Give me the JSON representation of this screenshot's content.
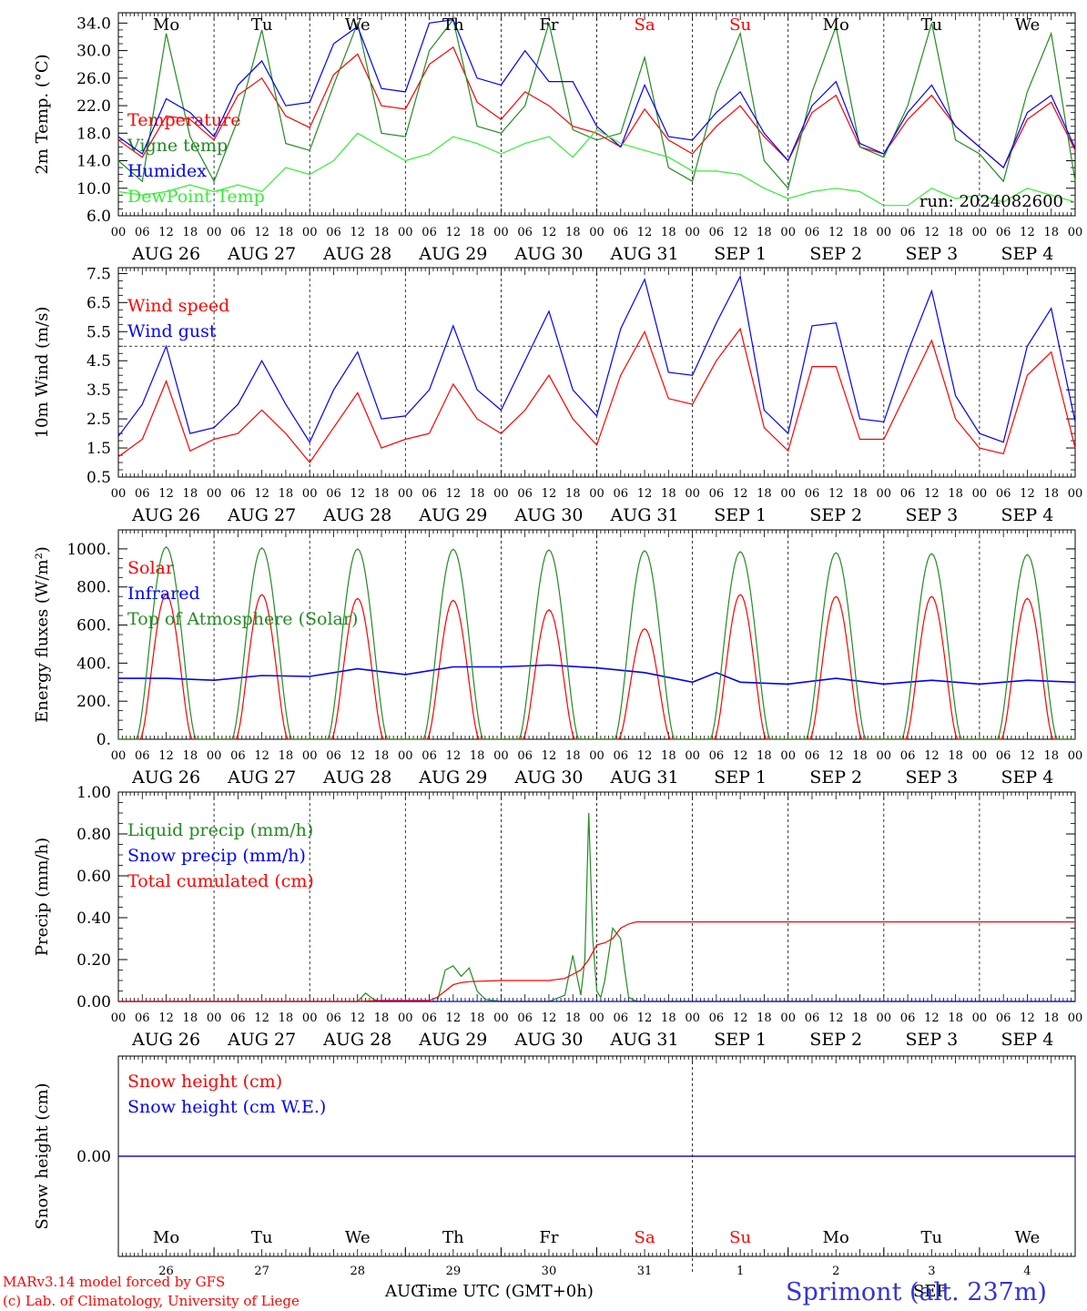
{
  "meteogram": {
    "run_label": "run: 2024082600",
    "footer_model": "MARv3.14 model forced by GFS",
    "footer_lab": "(c) Lab. of Climatology, University of Liege",
    "footer_location": "Sprimont (alt. 237m)",
    "footer_time_label": "Time UTC (GMT+0h)",
    "footer_month_aug": "AUG",
    "footer_month_sep": "SEP",
    "weekend_color": "#ff0000",
    "hour_ticks": [
      "00",
      "06",
      "12",
      "18",
      "00",
      "06",
      "12",
      "18",
      "00",
      "06",
      "12",
      "18",
      "00",
      "06",
      "12",
      "18",
      "00",
      "06",
      "12",
      "18",
      "00",
      "06",
      "12",
      "18",
      "00",
      "06",
      "12",
      "18",
      "00",
      "06",
      "12",
      "18",
      "00",
      "06",
      "12",
      "18",
      "00",
      "06",
      "12",
      "18",
      "00"
    ],
    "date_labels": [
      "AUG 26",
      "AUG 27",
      "AUG 28",
      "AUG 29",
      "AUG 30",
      "AUG 31",
      "SEP  1",
      "SEP  2",
      "SEP  3",
      "SEP  4"
    ],
    "weekdays": [
      "Mo",
      "Tu",
      "We",
      "Th",
      "Fr",
      "Sa",
      "Su",
      "Mo",
      "Tu",
      "We"
    ],
    "weekday_weekend": [
      false,
      false,
      false,
      false,
      false,
      true,
      true,
      false,
      false,
      false
    ],
    "day_numbers": [
      "26",
      "27",
      "28",
      "29",
      "30",
      "31",
      "1",
      "2",
      "3",
      "4"
    ]
  },
  "chart_data": [
    {
      "type": "line",
      "id": "temperature",
      "ylabel": "2m Temp. (°C)",
      "ylim": [
        6.0,
        35.5
      ],
      "yticks": [
        "6.0",
        "10.0",
        "14.0",
        "18.0",
        "22.0",
        "26.0",
        "30.0",
        "34.0"
      ],
      "ytick_values": [
        6,
        10,
        14,
        18,
        22,
        26,
        30,
        34
      ],
      "x_unit": "hours since 2024-08-26 00 UTC",
      "series": [
        {
          "name": "Temperature",
          "color": "#ff0000",
          "x": [
            0,
            6,
            12,
            18,
            24,
            30,
            36,
            42,
            48,
            54,
            60,
            66,
            72,
            78,
            84,
            90,
            96,
            102,
            108,
            114,
            120,
            126,
            132,
            138,
            144,
            150,
            156,
            162,
            168,
            174,
            180,
            186,
            192,
            198,
            204,
            210,
            216,
            222,
            228,
            234,
            240
          ],
          "values": [
            17.0,
            14.5,
            20.5,
            20.0,
            17.0,
            23.5,
            26.0,
            20.5,
            18.8,
            26.5,
            29.5,
            22.0,
            21.5,
            28.0,
            30.5,
            22.5,
            20.0,
            24.0,
            22.0,
            19.0,
            18.0,
            16.0,
            21.5,
            17.0,
            15.0,
            19.0,
            22.0,
            17.5,
            14.0,
            21.0,
            23.5,
            16.0,
            15.0,
            20.0,
            23.5,
            19.0,
            16.0,
            13.0,
            20.0,
            22.5,
            15.5
          ]
        },
        {
          "name": "Vigne temp",
          "color": "#228b22",
          "x": [
            0,
            6,
            12,
            18,
            24,
            30,
            36,
            42,
            48,
            54,
            60,
            66,
            72,
            78,
            84,
            90,
            96,
            102,
            108,
            114,
            120,
            126,
            132,
            138,
            144,
            150,
            156,
            162,
            168,
            174,
            180,
            186,
            192,
            198,
            204,
            210,
            216,
            222,
            228,
            234,
            240
          ],
          "values": [
            14.0,
            11.0,
            32.5,
            17.5,
            11.0,
            20.0,
            33.0,
            16.5,
            15.5,
            25.0,
            34.0,
            18.0,
            17.5,
            30.0,
            34.5,
            19.0,
            18.0,
            22.0,
            34.0,
            18.5,
            17.0,
            18.0,
            29.0,
            13.0,
            11.0,
            24.0,
            32.5,
            14.0,
            10.0,
            24.0,
            33.5,
            16.0,
            14.5,
            22.0,
            34.0,
            17.0,
            15.0,
            11.0,
            24.0,
            32.5,
            11.0
          ]
        },
        {
          "name": "Humidex",
          "color": "#0000ff",
          "x": [
            0,
            6,
            12,
            18,
            24,
            30,
            36,
            42,
            48,
            54,
            60,
            66,
            72,
            78,
            84,
            90,
            96,
            102,
            108,
            114,
            120,
            126,
            132,
            138,
            144,
            150,
            156,
            162,
            168,
            174,
            180,
            186,
            192,
            198,
            204,
            210,
            216,
            222,
            228,
            234,
            240
          ],
          "values": [
            17.5,
            15.0,
            23.0,
            21.0,
            17.5,
            25.0,
            28.5,
            22.0,
            22.5,
            31.0,
            33.5,
            24.5,
            24.0,
            34.0,
            34.5,
            26.0,
            25.0,
            30.0,
            25.5,
            25.5,
            19.0,
            16.0,
            25.0,
            17.5,
            17.0,
            21.0,
            24.0,
            18.0,
            14.0,
            22.0,
            25.5,
            16.5,
            15.0,
            21.0,
            25.0,
            19.0,
            16.0,
            13.0,
            21.0,
            23.5,
            15.8
          ]
        },
        {
          "name": "DewPoint Temp",
          "color": "#33ee33",
          "x": [
            0,
            6,
            12,
            18,
            24,
            30,
            36,
            42,
            48,
            54,
            60,
            66,
            72,
            78,
            84,
            90,
            96,
            102,
            108,
            114,
            120,
            126,
            132,
            138,
            144,
            150,
            156,
            162,
            168,
            174,
            180,
            186,
            192,
            198,
            204,
            210,
            216,
            222,
            228,
            234,
            240
          ],
          "values": [
            9.5,
            9.0,
            9.5,
            10.5,
            9.5,
            10.5,
            9.5,
            13.0,
            12.0,
            14.0,
            18.0,
            16.0,
            14.0,
            15.0,
            17.5,
            16.5,
            15.0,
            16.5,
            17.5,
            14.5,
            18.5,
            16.5,
            15.5,
            14.5,
            12.5,
            12.5,
            12.0,
            10.0,
            8.5,
            9.5,
            10.0,
            9.5,
            7.5,
            7.5,
            10.0,
            8.5,
            9.0,
            8.0,
            10.0,
            9.0,
            8.0
          ]
        }
      ]
    },
    {
      "type": "line",
      "id": "wind",
      "ylabel": "10m Wind (m/s)",
      "ylim": [
        0.5,
        7.7
      ],
      "yticks": [
        "0.5",
        "1.5",
        "2.5",
        "3.5",
        "4.5",
        "5.5",
        "6.5",
        "7.5"
      ],
      "ytick_values": [
        0.5,
        1.5,
        2.5,
        3.5,
        4.5,
        5.5,
        6.5,
        7.5
      ],
      "reference_line": 5.0,
      "series": [
        {
          "name": "Wind speed",
          "color": "#ff0000",
          "x": [
            0,
            6,
            12,
            18,
            24,
            30,
            36,
            42,
            48,
            54,
            60,
            66,
            72,
            78,
            84,
            90,
            96,
            102,
            108,
            114,
            120,
            126,
            132,
            138,
            144,
            150,
            156,
            162,
            168,
            174,
            180,
            186,
            192,
            198,
            204,
            210,
            216,
            222,
            228,
            234,
            240
          ],
          "values": [
            1.2,
            1.8,
            3.8,
            1.4,
            1.8,
            2.0,
            2.8,
            2.0,
            1.0,
            2.2,
            3.4,
            1.5,
            1.8,
            2.0,
            3.7,
            2.5,
            2.0,
            2.8,
            4.0,
            2.5,
            1.6,
            4.0,
            5.5,
            3.2,
            3.0,
            4.5,
            5.6,
            2.2,
            1.4,
            4.3,
            4.3,
            1.8,
            1.8,
            3.5,
            5.2,
            2.5,
            1.5,
            1.3,
            4.0,
            4.8,
            1.5
          ]
        },
        {
          "name": "Wind gust",
          "color": "#0000ff",
          "x": [
            0,
            6,
            12,
            18,
            24,
            30,
            36,
            42,
            48,
            54,
            60,
            66,
            72,
            78,
            84,
            90,
            96,
            102,
            108,
            114,
            120,
            126,
            132,
            138,
            144,
            150,
            156,
            162,
            168,
            174,
            180,
            186,
            192,
            198,
            204,
            210,
            216,
            222,
            228,
            234,
            240
          ],
          "values": [
            1.9,
            3.0,
            5.0,
            2.0,
            2.2,
            3.0,
            4.5,
            3.0,
            1.7,
            3.5,
            4.8,
            2.5,
            2.6,
            3.5,
            5.7,
            3.5,
            2.8,
            4.5,
            6.2,
            3.5,
            2.6,
            5.6,
            7.3,
            4.1,
            4.0,
            5.8,
            7.4,
            2.8,
            2.0,
            5.7,
            5.8,
            2.5,
            2.4,
            4.8,
            6.9,
            3.3,
            2.0,
            1.7,
            5.0,
            6.3,
            2.4
          ]
        }
      ]
    },
    {
      "type": "line",
      "id": "energy",
      "ylabel": "Energy fluxes (W/m²)",
      "ylim": [
        0,
        1100
      ],
      "yticks": [
        "0.",
        "200.",
        "400.",
        "600.",
        "800.",
        "1000."
      ],
      "ytick_values": [
        0,
        200,
        400,
        600,
        800,
        1000
      ],
      "series": [
        {
          "name": "Solar",
          "color": "#ff0000",
          "daily_peak": [
            760,
            760,
            740,
            730,
            680,
            580,
            760,
            750,
            750,
            740
          ]
        },
        {
          "name": "Infrared",
          "color": "#0000ff",
          "x": [
            0,
            12,
            24,
            36,
            48,
            60,
            72,
            84,
            96,
            108,
            120,
            132,
            144,
            150,
            156,
            168,
            180,
            192,
            204,
            216,
            228,
            240
          ],
          "values": [
            320,
            320,
            310,
            335,
            330,
            370,
            340,
            380,
            380,
            390,
            375,
            350,
            300,
            350,
            300,
            290,
            320,
            290,
            310,
            290,
            310,
            300
          ]
        },
        {
          "name": "Top of Atmosphere (Solar)",
          "color": "#228b22",
          "daily_peak": [
            1010,
            1005,
            1000,
            998,
            995,
            990,
            985,
            980,
            975,
            970
          ]
        }
      ]
    },
    {
      "type": "line",
      "id": "precip",
      "ylabel": "Precip (mm/h)",
      "ylim": [
        0,
        1.0
      ],
      "yticks": [
        "0.00",
        "0.20",
        "0.40",
        "0.60",
        "0.80",
        "1.00"
      ],
      "ytick_values": [
        0,
        0.2,
        0.4,
        0.6,
        0.8,
        1.0
      ],
      "series": [
        {
          "name": "Liquid precip (mm/h)",
          "color": "#228b22",
          "x": [
            0,
            60,
            62,
            64,
            66,
            72,
            80,
            82,
            84,
            86,
            88,
            90,
            92,
            96,
            108,
            112,
            114,
            116,
            117,
            118,
            119,
            120,
            121,
            122,
            124,
            126,
            127,
            128,
            129,
            130,
            132,
            240
          ],
          "values": [
            0,
            0,
            0.04,
            0.01,
            0,
            0,
            0,
            0.15,
            0.17,
            0.12,
            0.16,
            0.05,
            0.01,
            0,
            0,
            0.03,
            0.22,
            0.03,
            0.2,
            0.9,
            0.3,
            0.05,
            0.02,
            0.1,
            0.35,
            0.3,
            0.15,
            0.02,
            0.01,
            0,
            0,
            0
          ]
        },
        {
          "name": "Snow precip (mm/h)",
          "color": "#0000ff",
          "x": [
            0,
            240
          ],
          "values": [
            0,
            0
          ]
        },
        {
          "name": "Total cumulated (cm)",
          "color": "#ff0000",
          "x": [
            0,
            60,
            66,
            78,
            80,
            82,
            84,
            86,
            88,
            96,
            108,
            112,
            114,
            116,
            118,
            120,
            122,
            124,
            126,
            128,
            130,
            240
          ],
          "values": [
            0,
            0,
            0.005,
            0.005,
            0.02,
            0.05,
            0.08,
            0.09,
            0.095,
            0.1,
            0.1,
            0.11,
            0.13,
            0.15,
            0.2,
            0.27,
            0.28,
            0.3,
            0.35,
            0.37,
            0.38,
            0.38
          ]
        }
      ]
    },
    {
      "type": "line",
      "id": "snow",
      "ylabel": "Snow height (cm)",
      "ylim": [
        -1,
        1
      ],
      "yticks": [
        "0.00"
      ],
      "ytick_values": [
        0
      ],
      "series": [
        {
          "name": "Snow height (cm)",
          "color": "#ff0000",
          "x": [
            0,
            240
          ],
          "values": [
            0,
            0
          ]
        },
        {
          "name": "Snow height (cm W.E.)",
          "color": "#0000ff",
          "x": [
            0,
            240
          ],
          "values": [
            0,
            0
          ]
        }
      ]
    }
  ]
}
